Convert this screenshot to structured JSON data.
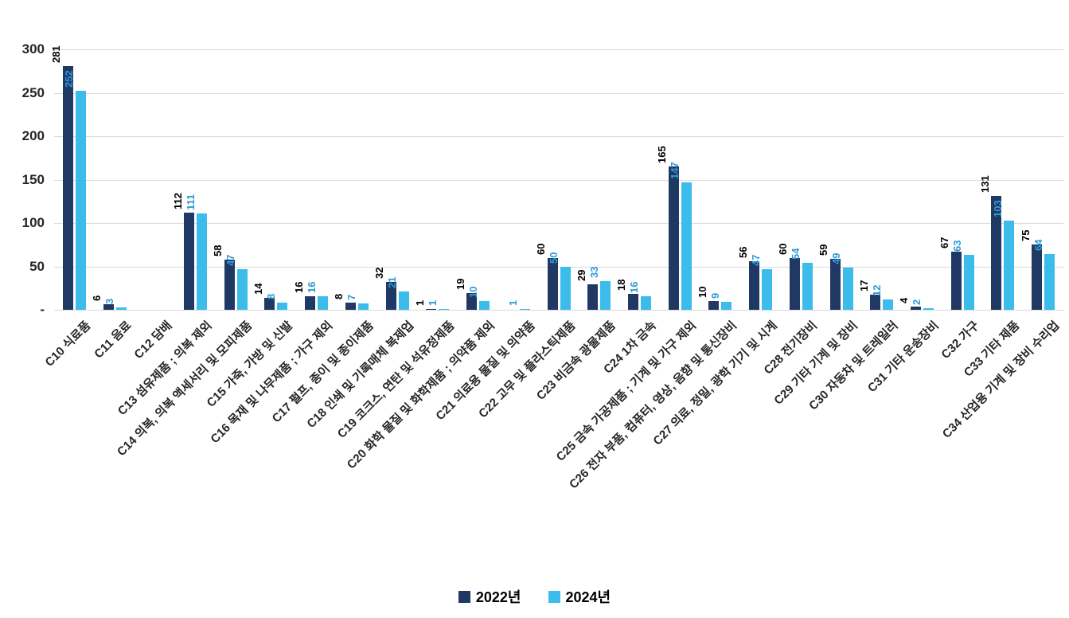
{
  "chart_data": {
    "type": "bar",
    "title": "",
    "xlabel": "",
    "ylabel": "",
    "grid": true,
    "legend_position": "bottom",
    "ylim": [
      0,
      300
    ],
    "y_ticks": [
      {
        "value": 0,
        "label": "-"
      },
      {
        "value": 50,
        "label": "50"
      },
      {
        "value": 100,
        "label": "100"
      },
      {
        "value": 150,
        "label": "150"
      },
      {
        "value": 200,
        "label": "200"
      },
      {
        "value": 250,
        "label": "250"
      },
      {
        "value": 300,
        "label": "300"
      }
    ],
    "categories": [
      "C10 식료품",
      "C11 음료",
      "C12 담배",
      "C13 섬유제품 ; 의복 제외",
      "C14 의복, 의복 액세서리 및 모피제품",
      "C15 가죽, 가방 및 신발",
      "C16 목재 및 나무제품 ; 가구 제외",
      "C17 펄프, 종이 및 종이제품",
      "C18 인쇄 및 기록매체 복제업",
      "C19 코크스, 연탄 및 석유정제품",
      "C20 화학 물질 및 화학제품 ; 의약품 제외",
      "C21 의료용 물질 및 의약품",
      "C22 고무 및 플라스틱제품",
      "C23 비금속 광물제품",
      "C24 1차 금속",
      "C25 금속 가공제품 ; 기계 및 가구 제외",
      "C26 전자 부품, 컴퓨터, 영상, 음향 및 통신장비",
      "C27 의료, 정밀, 광학 기기 및 시계",
      "C28 전기장비",
      "C29 기타 기계 및 장비",
      "C30 자동차 및 트레일러",
      "C31 기타 운송장비",
      "C32 가구",
      "C33 기타 제품",
      "C34 산업용 기계 및 장비 수리업"
    ],
    "series": [
      {
        "name": "2022년",
        "bar_color": "#1f3864",
        "label_color": "#000000",
        "values": [
          281,
          6,
          0,
          112,
          58,
          14,
          16,
          8,
          32,
          1,
          19,
          0,
          60,
          29,
          18,
          165,
          10,
          56,
          60,
          59,
          17,
          4,
          67,
          131,
          75
        ]
      },
      {
        "name": "2024년",
        "bar_color": "#3bbceb",
        "label_color": "#2e9bd6",
        "values": [
          252,
          3,
          0,
          111,
          47,
          8,
          16,
          7,
          21,
          1,
          10,
          1,
          50,
          33,
          16,
          147,
          9,
          47,
          54,
          49,
          12,
          2,
          63,
          103,
          64
        ]
      }
    ]
  }
}
